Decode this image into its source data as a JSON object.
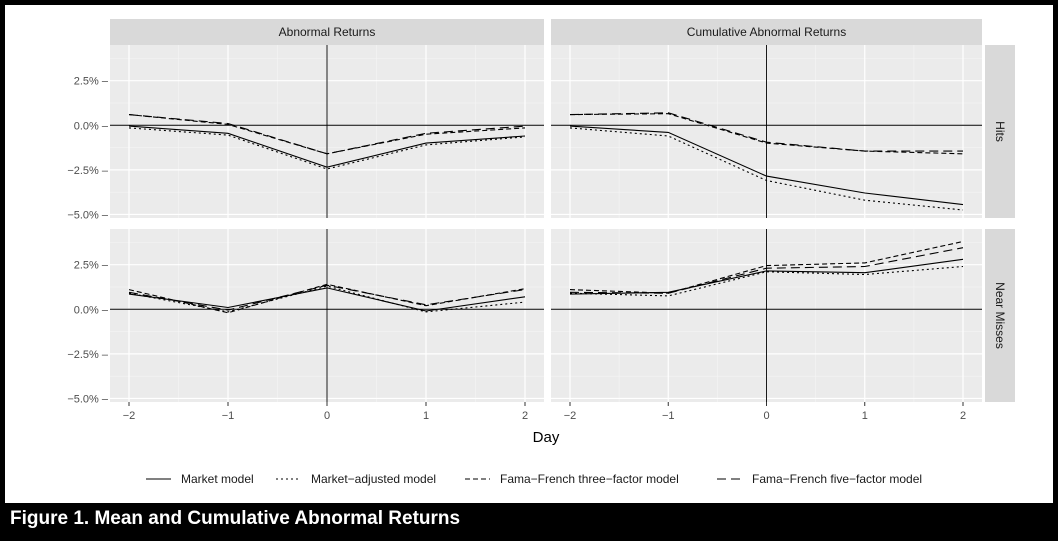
{
  "caption": "Figure 1. Mean and Cumulative Abnormal Returns",
  "chart_data": {
    "type": "line",
    "xlabel": "Day",
    "ylabel": "",
    "x": [
      -2,
      -1,
      0,
      1,
      2
    ],
    "x_tick_labels": [
      "−2",
      "−1",
      "0",
      "1",
      "2"
    ],
    "ylim": [
      -5.2,
      4.5
    ],
    "y_ticks": [
      2.5,
      0.0,
      -2.5,
      -5.0
    ],
    "y_tick_labels": [
      "2.5% –",
      "0.0% –",
      "−2.5% –",
      "−5.0% –"
    ],
    "grid": true,
    "legend_position": "bottom",
    "column_labels": [
      "Abnormal Returns",
      "Cumulative Abnormal Returns"
    ],
    "row_labels": [
      "Hits",
      "Near Misses"
    ],
    "series_names": [
      "Market model",
      "Market−adjusted model",
      "Fama−French three−factor model",
      "Fama−French five−factor model"
    ],
    "series_styles": [
      "solid",
      "dotted",
      "dashed",
      "longdash"
    ],
    "panels": [
      {
        "column": "Abnormal Returns",
        "row": "Hits",
        "series": [
          {
            "name": "Market model",
            "values": [
              -0.05,
              -0.45,
              -2.35,
              -1.0,
              -0.6
            ]
          },
          {
            "name": "Market−adjusted model",
            "values": [
              -0.15,
              -0.55,
              -2.45,
              -1.1,
              -0.65
            ]
          },
          {
            "name": "Fama−French three−factor model",
            "values": [
              0.6,
              0.05,
              -1.6,
              -0.5,
              -0.15
            ]
          },
          {
            "name": "Fama−French five−factor model",
            "values": [
              0.6,
              0.1,
              -1.6,
              -0.45,
              -0.05
            ]
          }
        ]
      },
      {
        "column": "Cumulative Abnormal Returns",
        "row": "Hits",
        "series": [
          {
            "name": "Market model",
            "values": [
              -0.05,
              -0.4,
              -2.85,
              -3.8,
              -4.45
            ]
          },
          {
            "name": "Market−adjusted model",
            "values": [
              -0.15,
              -0.6,
              -3.1,
              -4.2,
              -4.75
            ]
          },
          {
            "name": "Fama−French three−factor model",
            "values": [
              0.6,
              0.65,
              -1.0,
              -1.45,
              -1.6
            ]
          },
          {
            "name": "Fama−French five−factor model",
            "values": [
              0.6,
              0.7,
              -0.95,
              -1.45,
              -1.45
            ]
          }
        ]
      },
      {
        "column": "Abnormal Returns",
        "row": "Near Misses",
        "series": [
          {
            "name": "Market model",
            "values": [
              0.85,
              0.1,
              1.2,
              -0.1,
              0.7
            ]
          },
          {
            "name": "Market−adjusted model",
            "values": [
              0.9,
              -0.15,
              1.3,
              -0.15,
              0.4
            ]
          },
          {
            "name": "Fama−French three−factor model",
            "values": [
              1.1,
              -0.2,
              1.4,
              0.2,
              1.15
            ]
          },
          {
            "name": "Fama−French five−factor model",
            "values": [
              0.95,
              -0.05,
              1.35,
              0.25,
              1.1
            ]
          }
        ]
      },
      {
        "column": "Cumulative Abnormal Returns",
        "row": "Near Misses",
        "series": [
          {
            "name": "Market model",
            "values": [
              0.85,
              0.95,
              2.15,
              2.05,
              2.8
            ]
          },
          {
            "name": "Market−adjusted model",
            "values": [
              0.9,
              0.75,
              2.1,
              1.95,
              2.4
            ]
          },
          {
            "name": "Fama−French three−factor model",
            "values": [
              1.1,
              0.9,
              2.45,
              2.6,
              3.8
            ]
          },
          {
            "name": "Fama−French five−factor model",
            "values": [
              0.95,
              0.9,
              2.3,
              2.4,
              3.45
            ]
          }
        ]
      }
    ]
  }
}
